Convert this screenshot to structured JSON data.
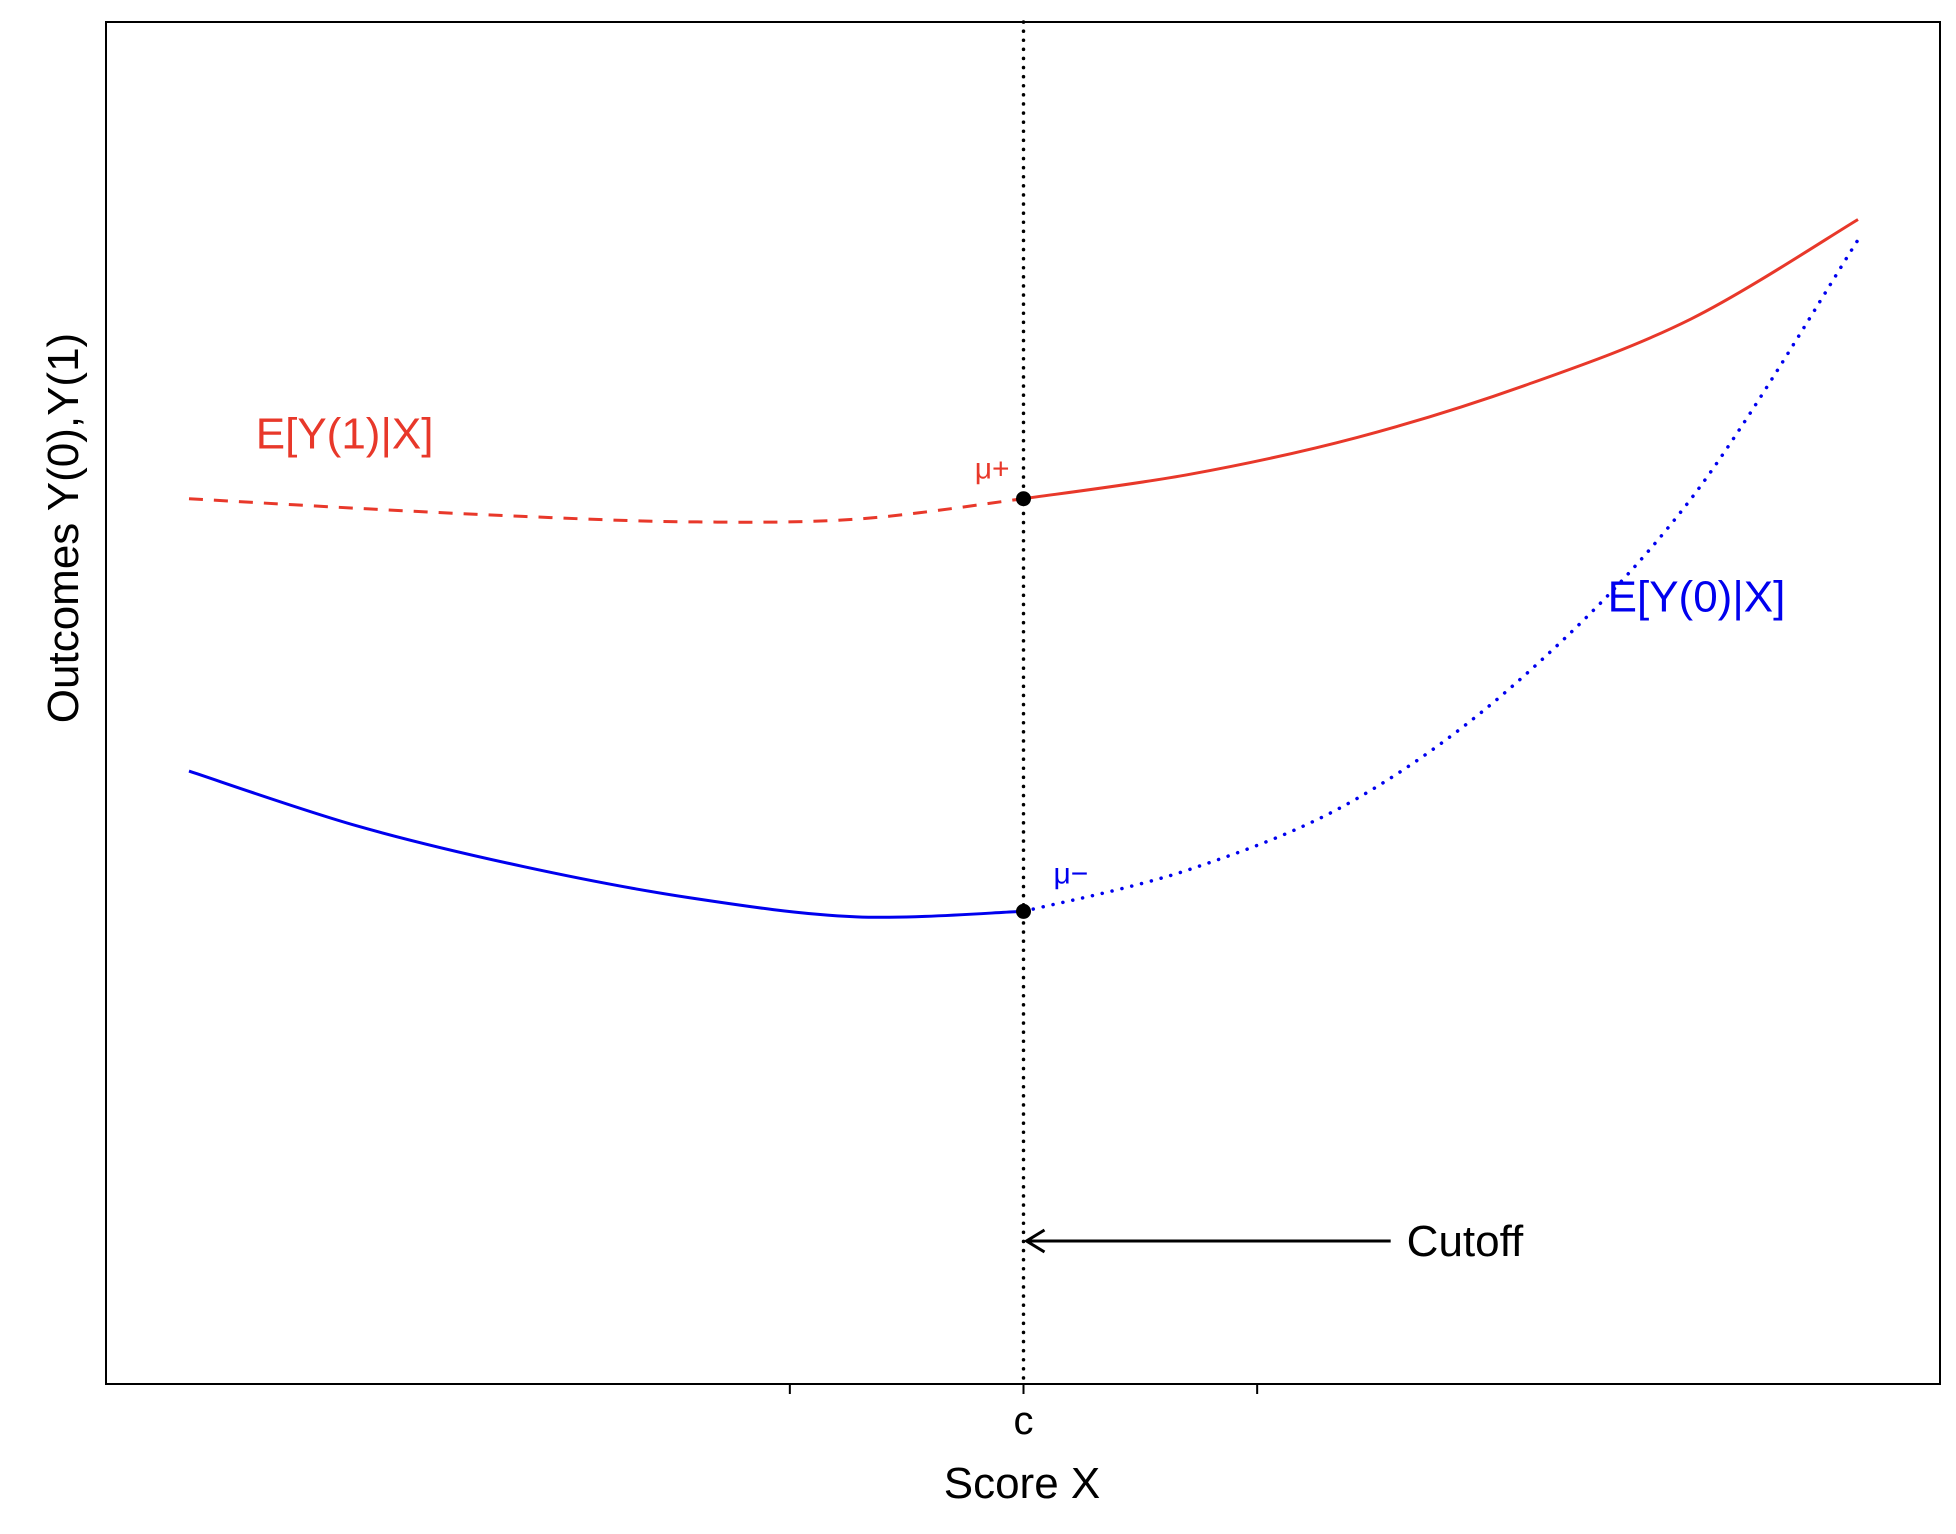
{
  "chart_data": {
    "type": "line",
    "xlabel": "Score X",
    "ylabel": "Outcomes Y(0),Y(1)",
    "xlim": [
      -0.5,
      0.5
    ],
    "ylim": [
      0,
      1
    ],
    "cutoff": 0,
    "x_ticks": [
      {
        "x": -0.14,
        "label": ""
      },
      {
        "x": 0,
        "label": "c"
      },
      {
        "x": 0.14,
        "label": ""
      }
    ],
    "grid": false,
    "legend": "none",
    "series": [
      {
        "name": "E[Y(1)|X]",
        "color": "#e8382a",
        "segments": [
          {
            "style": "dashed",
            "x": [
              -0.5,
              -0.4,
              -0.3,
              -0.2,
              -0.1,
              0
            ],
            "y": [
              0.65,
              0.643,
              0.637,
              0.633,
              0.635,
              0.65
            ]
          },
          {
            "style": "solid",
            "x": [
              0,
              0.1,
              0.2,
              0.3,
              0.4,
              0.5
            ],
            "y": [
              0.65,
              0.668,
              0.695,
              0.733,
              0.782,
              0.855
            ]
          }
        ]
      },
      {
        "name": "E[Y(0)|X]",
        "color": "#0000ee",
        "segments": [
          {
            "style": "solid",
            "x": [
              -0.5,
              -0.4,
              -0.3,
              -0.2,
              -0.1,
              0
            ],
            "y": [
              0.45,
              0.41,
              0.38,
              0.357,
              0.343,
              0.347
            ]
          },
          {
            "style": "dotted",
            "x": [
              0,
              0.1,
              0.2,
              0.3,
              0.4,
              0.5
            ],
            "y": [
              0.347,
              0.378,
              0.43,
              0.52,
              0.65,
              0.84
            ]
          }
        ]
      }
    ],
    "points": [
      {
        "label": "μ+",
        "x": 0,
        "y": 0.65,
        "color": "#e8382a"
      },
      {
        "label": "μ−",
        "x": 0,
        "y": 0.347,
        "color": "#0000ee"
      }
    ],
    "series_labels": [
      {
        "text": "E[Y(1)|X]",
        "x": -0.46,
        "y": 0.687,
        "color": "#e8382a"
      },
      {
        "text": "E[Y(0)|X]",
        "x": 0.35,
        "y": 0.567,
        "color": "#0000ee"
      }
    ],
    "annotation": {
      "text": "Cutoff",
      "x_from": 0.22,
      "x_to": 0,
      "y": 0.105
    }
  }
}
